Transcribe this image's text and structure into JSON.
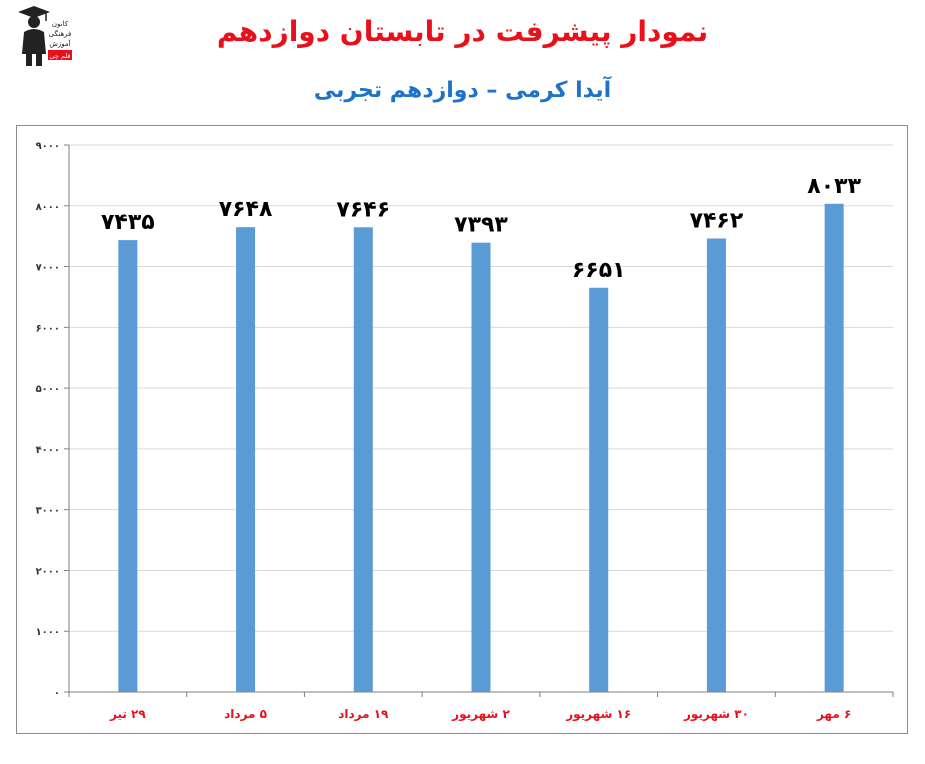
{
  "header": {
    "title": "نمودار پیشرفت در تابستان دوازدهم",
    "subtitle": "آیدا کرمی – دوازدهم تجربی",
    "logo_icon": "graduate-logo-icon",
    "logo_lines": [
      "کانون",
      "فرهنگی",
      "آموزش",
      "قلم چی"
    ]
  },
  "colors": {
    "title": "#e8101a",
    "subtitle": "#1e73c8",
    "bar": "#5b9bd5",
    "category_label": "#e8101a",
    "value_label": "#000000",
    "grid": "#d9d9d9"
  },
  "chart_data": {
    "type": "bar",
    "categories": [
      "۲۹ تیر",
      "۵ مرداد",
      "۱۹ مرداد",
      "۲ شهریور",
      "۱۶ شهریور",
      "۳۰ شهریور",
      "۶ مهر"
    ],
    "values": [
      7435,
      7648,
      7646,
      7393,
      6651,
      7462,
      8033
    ],
    "data_labels": [
      "۷۴۳۵",
      "۷۶۴۸",
      "۷۶۴۶",
      "۷۳۹۳",
      "۶۶۵۱",
      "۷۴۶۲",
      "۸۰۳۳"
    ],
    "ylim": [
      0,
      9000
    ],
    "yticks": [
      0,
      1000,
      2000,
      3000,
      4000,
      5000,
      6000,
      7000,
      8000,
      9000
    ],
    "ytick_labels": [
      "۰",
      "۱۰۰۰",
      "۲۰۰۰",
      "۳۰۰۰",
      "۴۰۰۰",
      "۵۰۰۰",
      "۶۰۰۰",
      "۷۰۰۰",
      "۸۰۰۰",
      "۹۰۰۰"
    ],
    "grid": true,
    "legend": "none",
    "xlabel": "",
    "ylabel": ""
  }
}
